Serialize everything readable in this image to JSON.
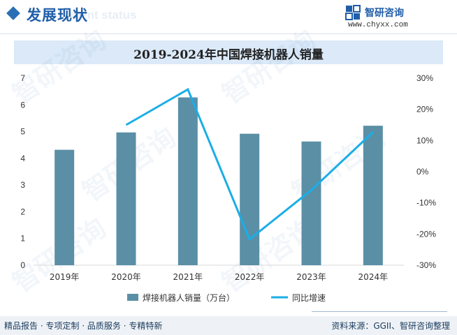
{
  "header": {
    "title": "发展现状",
    "ghost_text": "ment status",
    "brand_name": "智研咨询",
    "brand_url": "www.chyxx.com"
  },
  "footer": {
    "left_text": "精品报告 · 专项定制 · 品质服务 · 专精特新",
    "source": "资料来源：GGII、智研咨询整理"
  },
  "colors": {
    "bar": "#5b8fa6",
    "line": "#1aaee6",
    "accent": "#1f5ea8",
    "title_band": "#dbe9f8"
  },
  "chart_data": {
    "type": "bar+line",
    "title": "2019-2024年中国焊接机器人销量",
    "categories": [
      "2019年",
      "2020年",
      "2021年",
      "2022年",
      "2023年",
      "2024年"
    ],
    "series": [
      {
        "name": "焊接机器人销量（万台）",
        "type": "bar",
        "axis": "left",
        "values": [
          4.32,
          4.97,
          6.28,
          4.92,
          4.63,
          5.22
        ]
      },
      {
        "name": "同比增速",
        "type": "line",
        "axis": "right",
        "values": [
          null,
          15.0,
          26.4,
          -21.7,
          -5.9,
          12.7
        ]
      }
    ],
    "y_left": {
      "min": 0,
      "max": 7,
      "ticks": [
        "0",
        "1",
        "2",
        "3",
        "4",
        "5",
        "6",
        "7"
      ]
    },
    "y_right": {
      "min": -30,
      "max": 30,
      "ticks": [
        "-30%",
        "-20%",
        "-10%",
        "0%",
        "10%",
        "20%",
        "30%"
      ]
    },
    "legend_position": "bottom",
    "grid": false
  }
}
